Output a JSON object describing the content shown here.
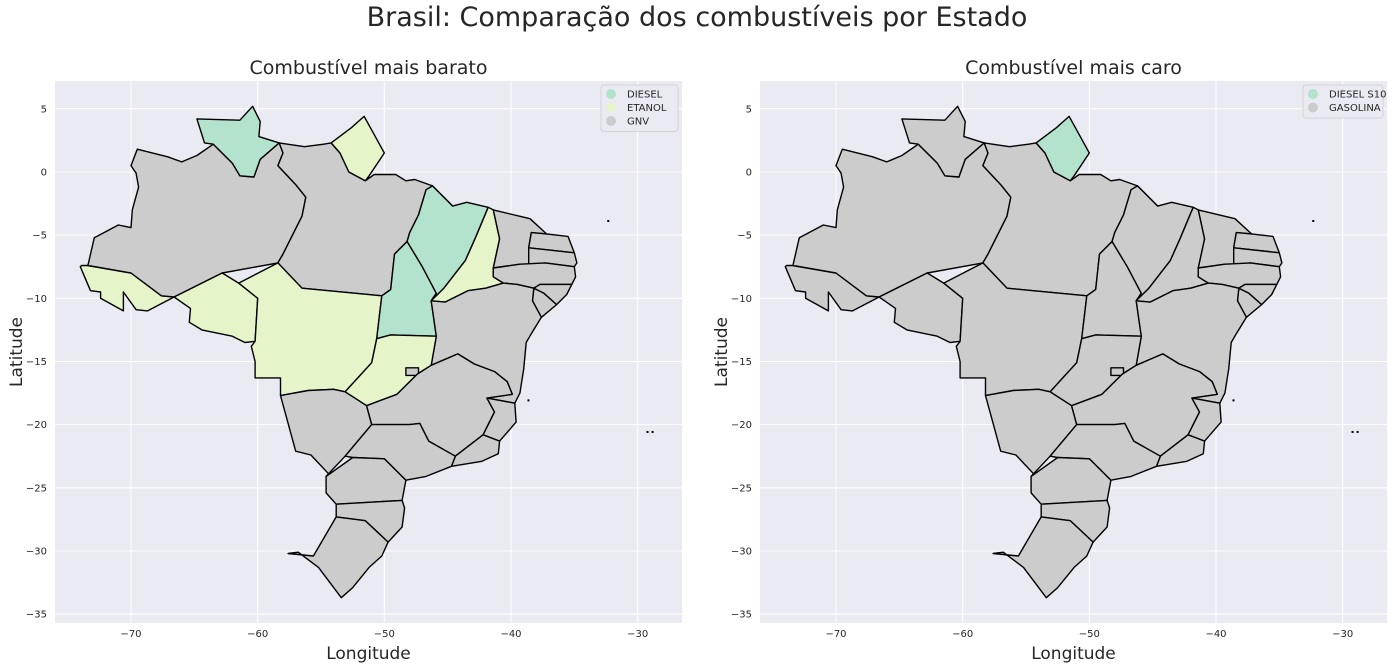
{
  "title": "Brasil: Comparação dos combustíveis por Estado",
  "colors": {
    "background": "#eaeaf2",
    "grid": "#ffffff",
    "border": "#000000",
    "DIESEL": "#b3e2cd",
    "DIESEL S10": "#b3e2cd",
    "ETANOL": "#e6f5c9",
    "GNV": "#cccccc",
    "GASOLINA": "#cccccc"
  },
  "chart_data": [
    {
      "type": "map",
      "title": "Combustível mais barato",
      "xlabel": "Longitude",
      "ylabel": "Latitude",
      "xlim": [
        -76,
        -26.5
      ],
      "ylim": [
        -35.7,
        7.2
      ],
      "xticks": [
        -70,
        -60,
        -50,
        -40,
        -30
      ],
      "yticks": [
        5,
        0,
        -5,
        -10,
        -15,
        -20,
        -25,
        -30,
        -35
      ],
      "grid": true,
      "legend_position": "top-right",
      "legend": [
        "DIESEL",
        "ETANOL",
        "GNV"
      ],
      "states": {
        "AC": "ETANOL",
        "AM": "GNV",
        "RR": "DIESEL",
        "PA": "GNV",
        "AP": "ETANOL",
        "RO": "ETANOL",
        "MT": "ETANOL",
        "TO": "DIESEL",
        "MA": "DIESEL",
        "PI": "ETANOL",
        "CE": "GNV",
        "RN": "GNV",
        "PB": "GNV",
        "PE": "GNV",
        "AL": "GNV",
        "SE": "GNV",
        "BA": "GNV",
        "GO": "ETANOL",
        "DF": "GNV",
        "MS": "GNV",
        "MG": "GNV",
        "ES": "GNV",
        "RJ": "GNV",
        "SP": "GNV",
        "PR": "GNV",
        "SC": "GNV",
        "RS": "GNV"
      }
    },
    {
      "type": "map",
      "title": "Combustível mais caro",
      "xlabel": "Longitude",
      "ylabel": "Latitude",
      "xlim": [
        -76,
        -26.5
      ],
      "ylim": [
        -35.7,
        7.2
      ],
      "xticks": [
        -70,
        -60,
        -50,
        -40,
        -30
      ],
      "yticks": [
        5,
        0,
        -5,
        -10,
        -15,
        -20,
        -25,
        -30,
        -35
      ],
      "grid": true,
      "legend_position": "top-right",
      "legend": [
        "DIESEL S10",
        "GASOLINA"
      ],
      "states": {
        "AC": "GASOLINA",
        "AM": "GASOLINA",
        "RR": "GASOLINA",
        "PA": "GASOLINA",
        "AP": "DIESEL S10",
        "RO": "GASOLINA",
        "MT": "GASOLINA",
        "TO": "GASOLINA",
        "MA": "GASOLINA",
        "PI": "GASOLINA",
        "CE": "GASOLINA",
        "RN": "GASOLINA",
        "PB": "GASOLINA",
        "PE": "GASOLINA",
        "AL": "GASOLINA",
        "SE": "GASOLINA",
        "BA": "GASOLINA",
        "GO": "GASOLINA",
        "DF": "GASOLINA",
        "MS": "GASOLINA",
        "MG": "GASOLINA",
        "ES": "GASOLINA",
        "RJ": "GASOLINA",
        "SP": "GASOLINA",
        "PR": "GASOLINA",
        "SC": "GASOLINA",
        "RS": "GASOLINA"
      }
    }
  ]
}
